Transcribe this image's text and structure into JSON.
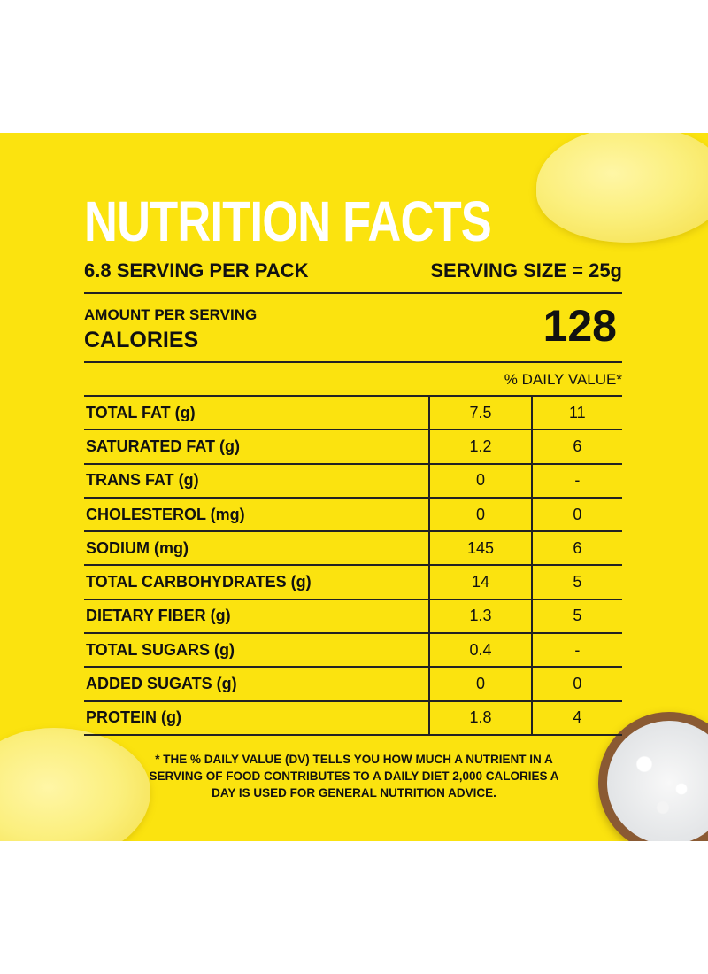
{
  "title": "NUTRITION FACTS",
  "serving": {
    "per_pack": "6.8 SERVING PER PACK",
    "size": "SERVING SIZE = 25g"
  },
  "calories": {
    "amount_label": "AMOUNT PER SERVING",
    "label": "CALORIES",
    "value": "128"
  },
  "daily_value_header": "% DAILY VALUE*",
  "nutrients": [
    {
      "name": "TOTAL FAT (g)",
      "amount": "7.5",
      "dv": "11"
    },
    {
      "name": "SATURATED FAT (g)",
      "amount": "1.2",
      "dv": "6"
    },
    {
      "name": "TRANS FAT (g)",
      "amount": "0",
      "dv": "-"
    },
    {
      "name": "CHOLESTEROL (mg)",
      "amount": "0",
      "dv": "0"
    },
    {
      "name": "SODIUM (mg)",
      "amount": "145",
      "dv": "6"
    },
    {
      "name": "TOTAL CARBOHYDRATES (g)",
      "amount": "14",
      "dv": "5"
    },
    {
      "name": "DIETARY FIBER (g)",
      "amount": "1.3",
      "dv": "5"
    },
    {
      "name": "TOTAL SUGARS (g)",
      "amount": "0.4",
      "dv": "-"
    },
    {
      "name": "ADDED SUGATS (g)",
      "amount": "0",
      "dv": "0"
    },
    {
      "name": "PROTEIN (g)",
      "amount": "1.8",
      "dv": "4"
    }
  ],
  "footnote": "* THE % DAILY VALUE (DV) TELLS YOU HOW MUCH A NUTRIENT IN A SERVING OF FOOD CONTRIBUTES TO A DAILY DIET 2,000 CALORIES A DAY IS USED FOR GENERAL NUTRITION ADVICE.",
  "colors": {
    "background": "#fbe30f",
    "title": "#ffffff",
    "text": "#111111"
  },
  "decorations": [
    "potato-chip-image",
    "potato-chip-image",
    "salt-bowl-image"
  ]
}
